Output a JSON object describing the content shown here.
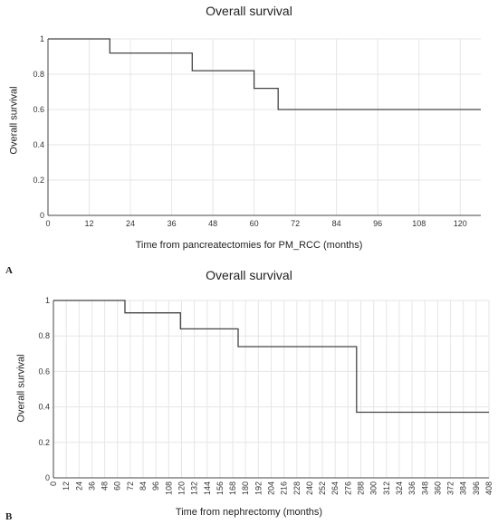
{
  "chart_data": [
    {
      "panel": "A",
      "type": "line",
      "title": "Overall survival",
      "xlabel": "Time from pancreatectomies for PM_RCC (months)",
      "ylabel": "Overall survival",
      "xlim": [
        0,
        126
      ],
      "ylim": [
        0,
        1
      ],
      "xticks": [
        0,
        12,
        24,
        36,
        48,
        60,
        72,
        84,
        96,
        108,
        120
      ],
      "yticks": [
        0,
        0.2,
        0.4,
        0.6,
        0.8,
        1
      ],
      "ytick_labels": [
        "0",
        "0.2",
        "0.4",
        "0.6",
        "0.8",
        "1"
      ],
      "grid": true,
      "step": true,
      "series": [
        {
          "x": [
            0,
            18,
            18,
            42,
            42,
            60,
            60,
            67,
            67,
            126
          ],
          "y": [
            1,
            1,
            0.92,
            0.92,
            0.82,
            0.82,
            0.72,
            0.72,
            0.6,
            0.6
          ]
        }
      ]
    },
    {
      "panel": "B",
      "type": "line",
      "title": "Overall survival",
      "xlabel": "Time from nephrectomy (months)",
      "ylabel": "Overall survival",
      "xlim": [
        0,
        408
      ],
      "ylim": [
        0,
        1
      ],
      "xticks": [
        0,
        12,
        24,
        36,
        48,
        60,
        72,
        84,
        96,
        108,
        120,
        132,
        144,
        156,
        168,
        180,
        192,
        204,
        216,
        228,
        240,
        252,
        264,
        276,
        288,
        300,
        312,
        324,
        336,
        348,
        360,
        372,
        384,
        396,
        408
      ],
      "yticks": [
        0,
        0.2,
        0.4,
        0.6,
        0.8,
        1
      ],
      "ytick_labels": [
        "0",
        "0.2",
        "0.4",
        "0.6",
        "0.8",
        "1"
      ],
      "grid": true,
      "step": true,
      "series": [
        {
          "x": [
            0,
            67,
            67,
            119,
            119,
            173,
            173,
            284,
            284,
            408
          ],
          "y": [
            1,
            1,
            0.93,
            0.93,
            0.84,
            0.84,
            0.74,
            0.74,
            0.37,
            0.37
          ]
        }
      ]
    }
  ]
}
